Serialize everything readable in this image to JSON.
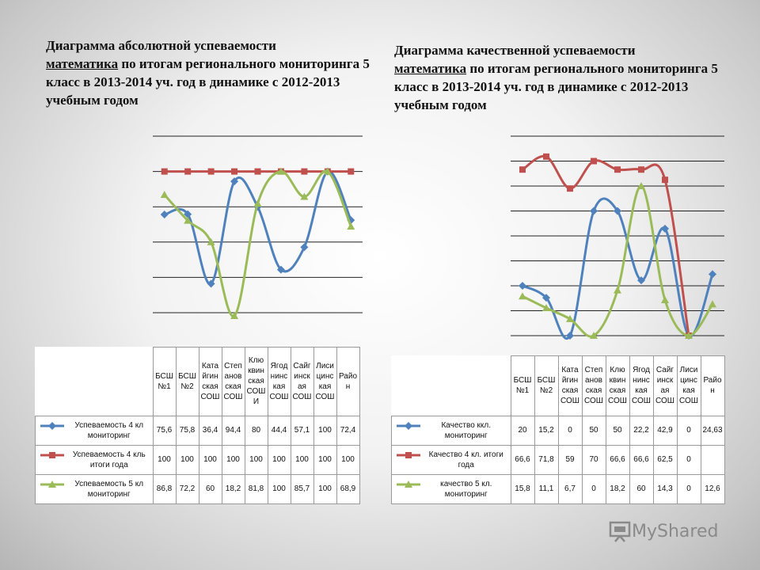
{
  "titles": {
    "left": {
      "line1": "Диаграмма абсолютной успеваемости",
      "subject": "математика",
      "line2rest": " по итогам регионального мониторинга  5 класс в 2013-2014 уч. год в динамике с 2012-2013 учебным годом"
    },
    "right": {
      "line1": "Диаграмма качественной успеваемости",
      "subject": "математика",
      "line2rest": "  по итогам регионального мониторинга  5 класс в 2013-2014 уч. год в динамике с 2012-2013 учебным годом"
    }
  },
  "chart_data": [
    {
      "type": "line",
      "title": "Диаграмма абсолютной успеваемости математика по итогам регионального мониторинга 5 класс в 2013-2014 уч. год в динамике с 2012-2013 учебным годом",
      "categories": [
        "БСШ №1",
        "БСШ №2",
        "Катайгинская СОШ",
        "Степановская СОШ",
        "Ключвинская СОШИ",
        "Ягоднинская СОШ",
        "Сайгинская СОШ",
        "Лисицинская СОШ",
        "Район"
      ],
      "category_labels": [
        "БСШ\n№1",
        "БСШ\n№2",
        "Ката\nйгин\nская\nСОШ",
        "Степ\nанов\nская\nСОШ",
        "Клю\nквин\nская\nСОШ\nИ",
        "Ягод\nнинс\nкая\nСОШ",
        "Сайг\nинск\nая\nСОШ",
        "Лиси\nцинс\nкая\nСОШ",
        "Райо\nн"
      ],
      "ylim": [
        20,
        120
      ],
      "series": [
        {
          "name": "Успеваемость 4 кл мониторинг",
          "color": "#4f81bd",
          "marker": "diamond",
          "values": [
            75.6,
            75.8,
            36.4,
            94.4,
            80,
            44.4,
            57.1,
            100,
            72.4
          ],
          "display": [
            "75,6",
            "75,8",
            "36,4",
            "94,4",
            "80",
            "44,4",
            "57,1",
            "100",
            "72,4"
          ]
        },
        {
          "name": "Успеваемость 4 кль итоги года",
          "color": "#c0504d",
          "marker": "square",
          "values": [
            100,
            100,
            100,
            100,
            100,
            100,
            100,
            100,
            100
          ],
          "display": [
            "100",
            "100",
            "100",
            "100",
            "100",
            "100",
            "100",
            "100",
            "100"
          ]
        },
        {
          "name": "Успеваемость 5 кл мониторинг",
          "color": "#9bbb59",
          "marker": "triangle",
          "values": [
            86.8,
            72.2,
            60,
            18.2,
            81.8,
            100,
            85.7,
            100,
            68.9
          ],
          "display": [
            "86,8",
            "72,2",
            "60",
            "18,2",
            "81,8",
            "100",
            "85,7",
            "100",
            "68,9"
          ]
        }
      ]
    },
    {
      "type": "line",
      "title": "Диаграмма качественной успеваемости математика по итогам регионального мониторинга 5 класс в 2013-2014 уч. год в динамике с 2012-2013 учебным годом",
      "categories": [
        "БСШ №1",
        "БСШ №2",
        "Катайгинская СОШ",
        "Степановская СОШ",
        "Ключвинская СОШ",
        "Ягоднинская СОШ",
        "Сайгинская СОШ",
        "Лисицинская СОШ",
        "Район"
      ],
      "category_labels": [
        "БСШ\n№1",
        "БСШ\n№2",
        "Ката\nйгин\nская\nСОШ",
        "Степ\nанов\nская\nСОШ",
        "Клю\nквин\nская\nСОШ",
        "Ягод\nнинс\nкая\nСОШ",
        "Сайг\nинск\nая\nСОШ",
        "Лиси\nцинс\nкая\nСОШ",
        "Райо\nн"
      ],
      "ylim": [
        0,
        80
      ],
      "series": [
        {
          "name": "Качество ккл. мониторинг",
          "color": "#4f81bd",
          "marker": "diamond",
          "values": [
            20,
            15.2,
            0,
            50,
            50,
            22.2,
            42.9,
            0,
            24.63
          ],
          "display": [
            "20",
            "15,2",
            "0",
            "50",
            "50",
            "22,2",
            "42,9",
            "0",
            "24,63"
          ]
        },
        {
          "name": "Качество 4 кл. итоги года",
          "color": "#c0504d",
          "marker": "square",
          "values": [
            66.6,
            71.8,
            59,
            70,
            66.6,
            66.6,
            62.5,
            0,
            0
          ],
          "display": [
            "66,6",
            "71,8",
            "59",
            "70",
            "66,6",
            "66,6",
            "62,5",
            "0",
            ""
          ]
        },
        {
          "name": "качество 5 кл. мониторинг",
          "color": "#9bbb59",
          "marker": "triangle",
          "values": [
            15.8,
            11.1,
            6.7,
            0,
            18.2,
            60,
            14.3,
            0,
            12.6
          ],
          "display": [
            "15,8",
            "11,1",
            "6,7",
            "0",
            "18,2",
            "60",
            "14,3",
            "0",
            "12,6"
          ]
        }
      ]
    }
  ],
  "watermark": {
    "text": "MyShared",
    "color": "#8a8a8a"
  }
}
